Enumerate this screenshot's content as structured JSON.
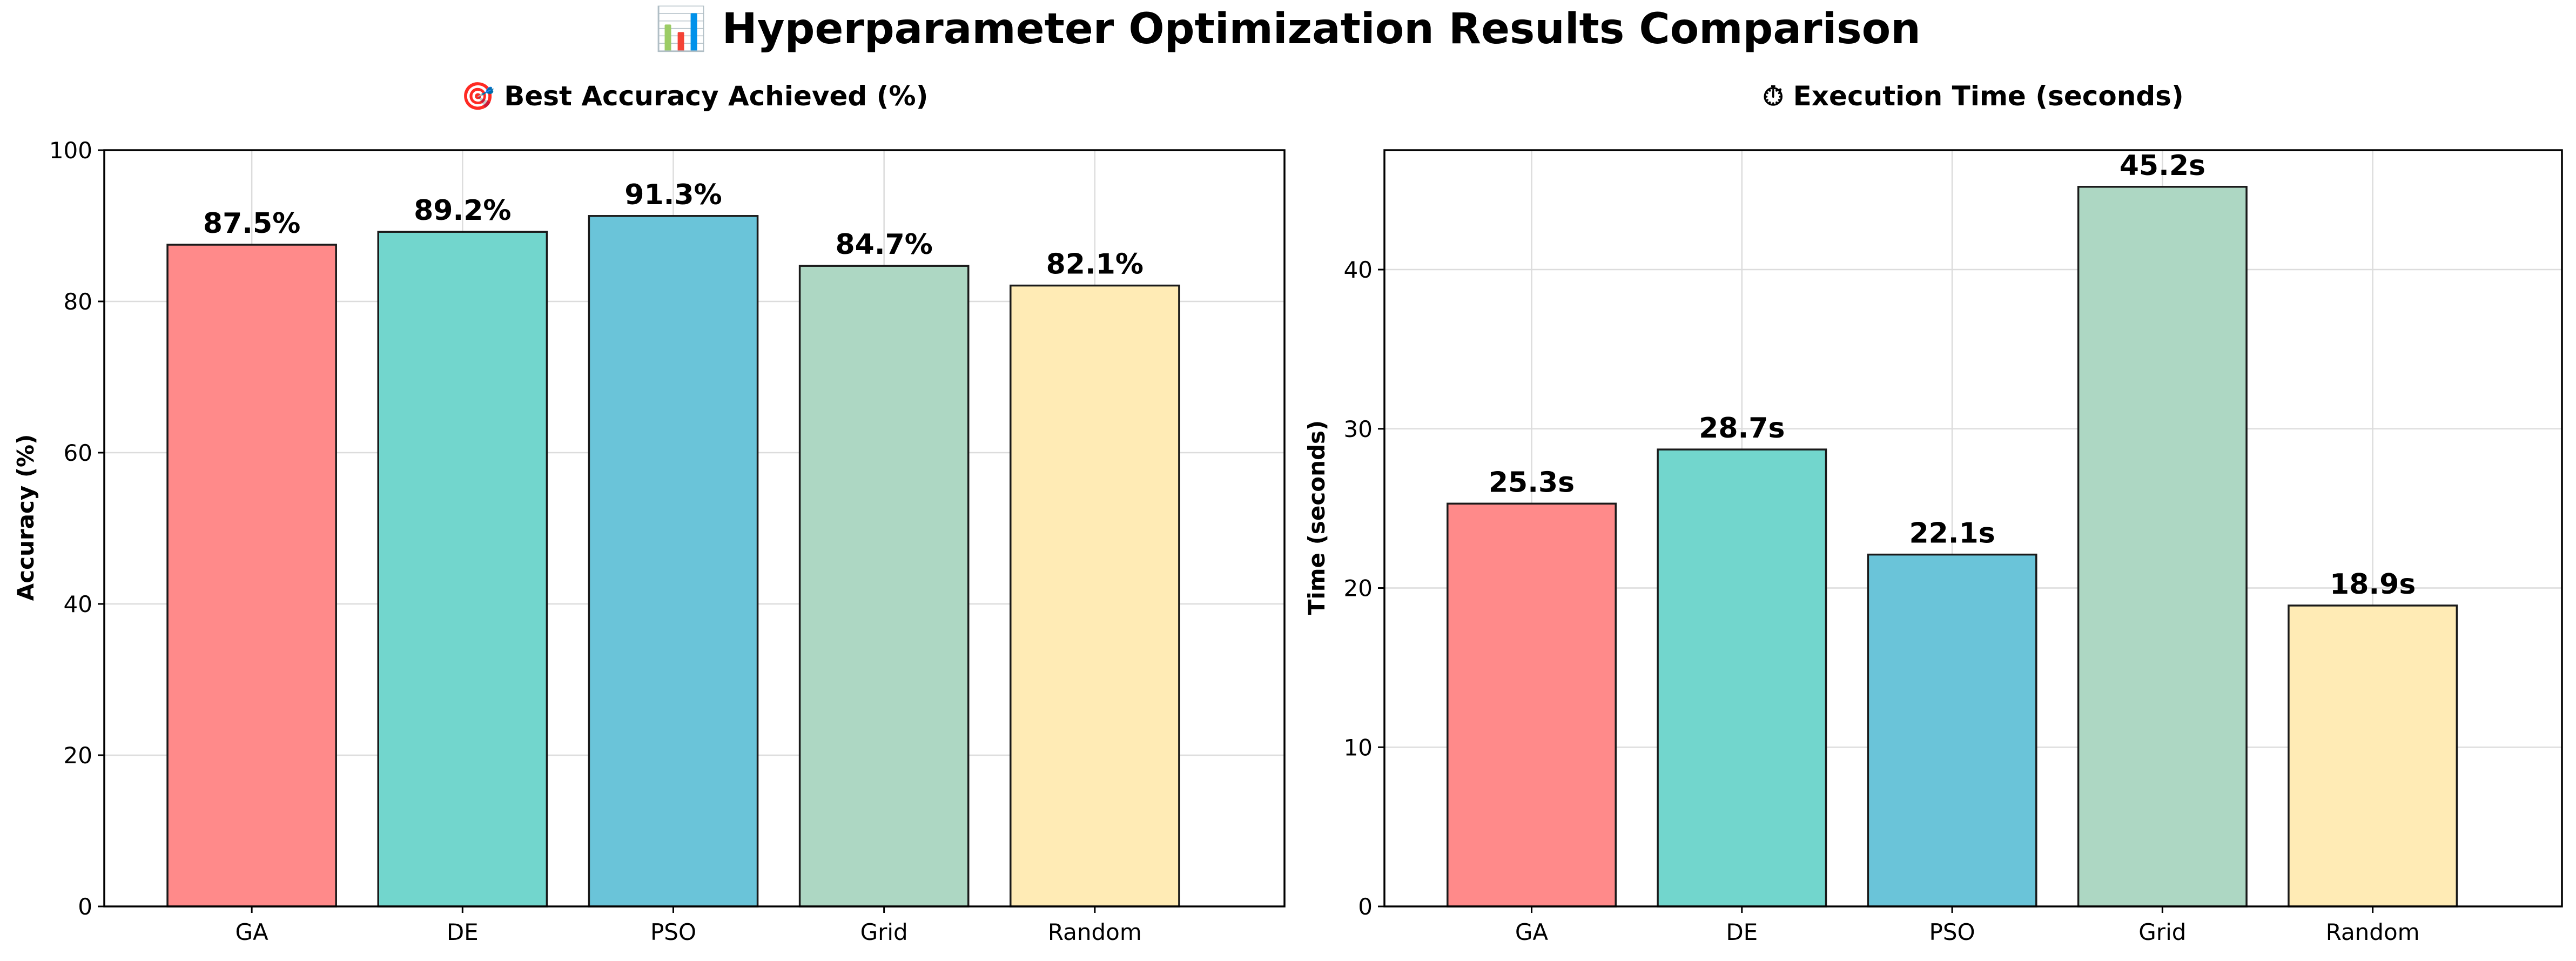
{
  "figure": {
    "title": "📊 Hyperparameter Optimization Results Comparison"
  },
  "chart_data": [
    {
      "type": "bar",
      "title": "🎯 Best Accuracy Achieved (%)",
      "xlabel": "",
      "ylabel": "Accuracy (%)",
      "categories": [
        "GA",
        "DE",
        "PSO",
        "Grid",
        "Random"
      ],
      "values": [
        87.5,
        89.2,
        91.3,
        84.7,
        82.1
      ],
      "data_labels": [
        "87.5%",
        "89.2%",
        "91.3%",
        "84.7%",
        "82.1%"
      ],
      "colors": [
        "#ff8a8a",
        "#72d6cd",
        "#6ac4d9",
        "#add7c3",
        "#ffebb5"
      ],
      "ylim": [
        0,
        100
      ],
      "yticks": [
        0,
        20,
        40,
        60,
        80,
        100
      ],
      "grid": true,
      "legend": "none"
    },
    {
      "type": "bar",
      "title": "⏱ Execution Time (seconds)",
      "xlabel": "",
      "ylabel": "Time (seconds)",
      "categories": [
        "GA",
        "DE",
        "PSO",
        "Grid",
        "Random"
      ],
      "values": [
        25.3,
        28.7,
        22.1,
        45.2,
        18.9
      ],
      "data_labels": [
        "25.3s",
        "28.7s",
        "22.1s",
        "45.2s",
        "18.9s"
      ],
      "colors": [
        "#ff8a8a",
        "#72d6cd",
        "#6ac4d9",
        "#add7c3",
        "#ffebb5"
      ],
      "ylim": [
        0,
        47.5
      ],
      "yticks": [
        0,
        10,
        20,
        30,
        40
      ],
      "grid": true,
      "legend": "none"
    }
  ]
}
